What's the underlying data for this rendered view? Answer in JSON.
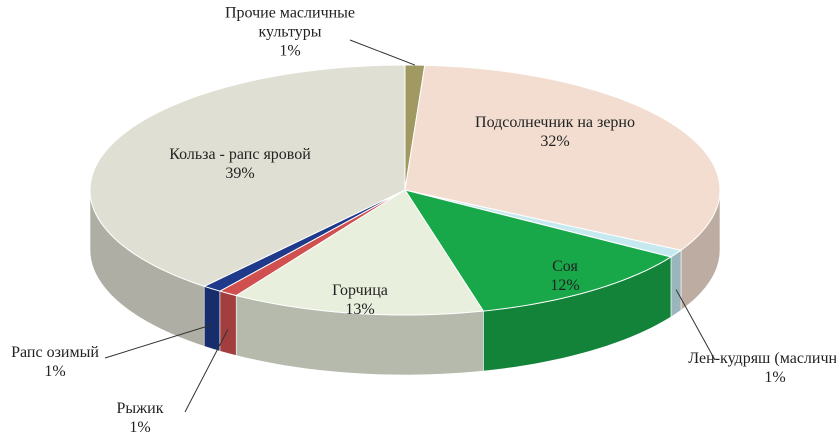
{
  "chart_data": {
    "type": "pie3d",
    "categories": [
      "Прочие масличные культуры",
      "Подсолнечник на зерно",
      "Лен-кудряш (масличный)",
      "Соя",
      "Горчица",
      "Рыжик",
      "Рапс озимый",
      "Кольза - рапс яровой"
    ],
    "values": [
      1,
      32,
      1,
      12,
      13,
      1,
      1,
      39
    ],
    "value_labels": [
      "1%",
      "32%",
      "1%",
      "12%",
      "13%",
      "1%",
      "1%",
      "39%"
    ],
    "colors": [
      "#a09a62",
      "#f2ddd0",
      "#c6e9f0",
      "#18a84a",
      "#e8efdc",
      "#d05050",
      "#1f3a8a",
      "#e0dfd3"
    ]
  }
}
